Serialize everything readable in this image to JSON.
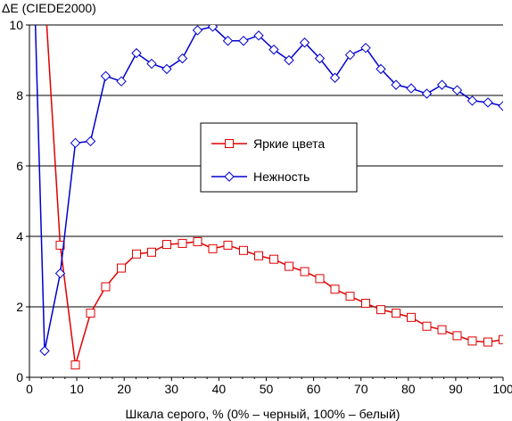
{
  "chart_data": {
    "type": "line",
    "title": "",
    "ylabel": "ΔE (CIEDE2000)",
    "xlabel": "Шкала серого, % (0% – черный, 100% – белый)",
    "xlim": [
      0,
      100
    ],
    "ylim": [
      0,
      10
    ],
    "x_ticks": [
      "0",
      "10",
      "20",
      "30",
      "40",
      "50",
      "60",
      "70",
      "80",
      "90",
      "100"
    ],
    "y_ticks": [
      "0",
      "2",
      "4",
      "6",
      "8",
      "10"
    ],
    "grid": "horizontal",
    "legend": "center",
    "series": [
      {
        "name": "Яркие цвета",
        "color": "#e00000",
        "marker": "square",
        "x": [
          0,
          3.2,
          6.5,
          9.7,
          12.9,
          16.1,
          19.4,
          22.6,
          25.8,
          29.0,
          32.3,
          35.5,
          38.7,
          41.9,
          45.2,
          48.4,
          51.6,
          54.8,
          58.1,
          61.3,
          64.5,
          67.7,
          71.0,
          74.2,
          77.4,
          80.6,
          83.9,
          87.1,
          90.3,
          93.5,
          96.8,
          100
        ],
        "values": [
          16.0,
          11.0,
          3.75,
          0.35,
          1.82,
          2.57,
          3.1,
          3.5,
          3.55,
          3.77,
          3.8,
          3.85,
          3.65,
          3.75,
          3.6,
          3.45,
          3.35,
          3.15,
          3.0,
          2.8,
          2.5,
          2.3,
          2.1,
          1.92,
          1.82,
          1.7,
          1.45,
          1.35,
          1.18,
          1.03,
          1.0,
          1.07
        ]
      },
      {
        "name": "Нежность",
        "color": "#0000d0",
        "marker": "diamond",
        "x": [
          0,
          3.2,
          6.5,
          9.7,
          12.9,
          16.1,
          19.4,
          22.6,
          25.8,
          29.0,
          32.3,
          35.5,
          38.7,
          41.9,
          45.2,
          48.4,
          51.6,
          54.8,
          58.1,
          61.3,
          64.5,
          67.7,
          71.0,
          74.2,
          77.4,
          80.6,
          83.9,
          87.1,
          90.3,
          93.5,
          96.8,
          100
        ],
        "values": [
          16.0,
          0.75,
          2.95,
          6.65,
          6.7,
          8.55,
          8.4,
          9.2,
          8.9,
          8.75,
          9.05,
          9.85,
          9.95,
          9.55,
          9.55,
          9.7,
          9.3,
          9.0,
          9.5,
          9.05,
          8.5,
          9.15,
          9.35,
          8.75,
          8.3,
          8.2,
          8.05,
          8.3,
          8.15,
          7.85,
          7.8,
          7.7
        ]
      }
    ]
  }
}
